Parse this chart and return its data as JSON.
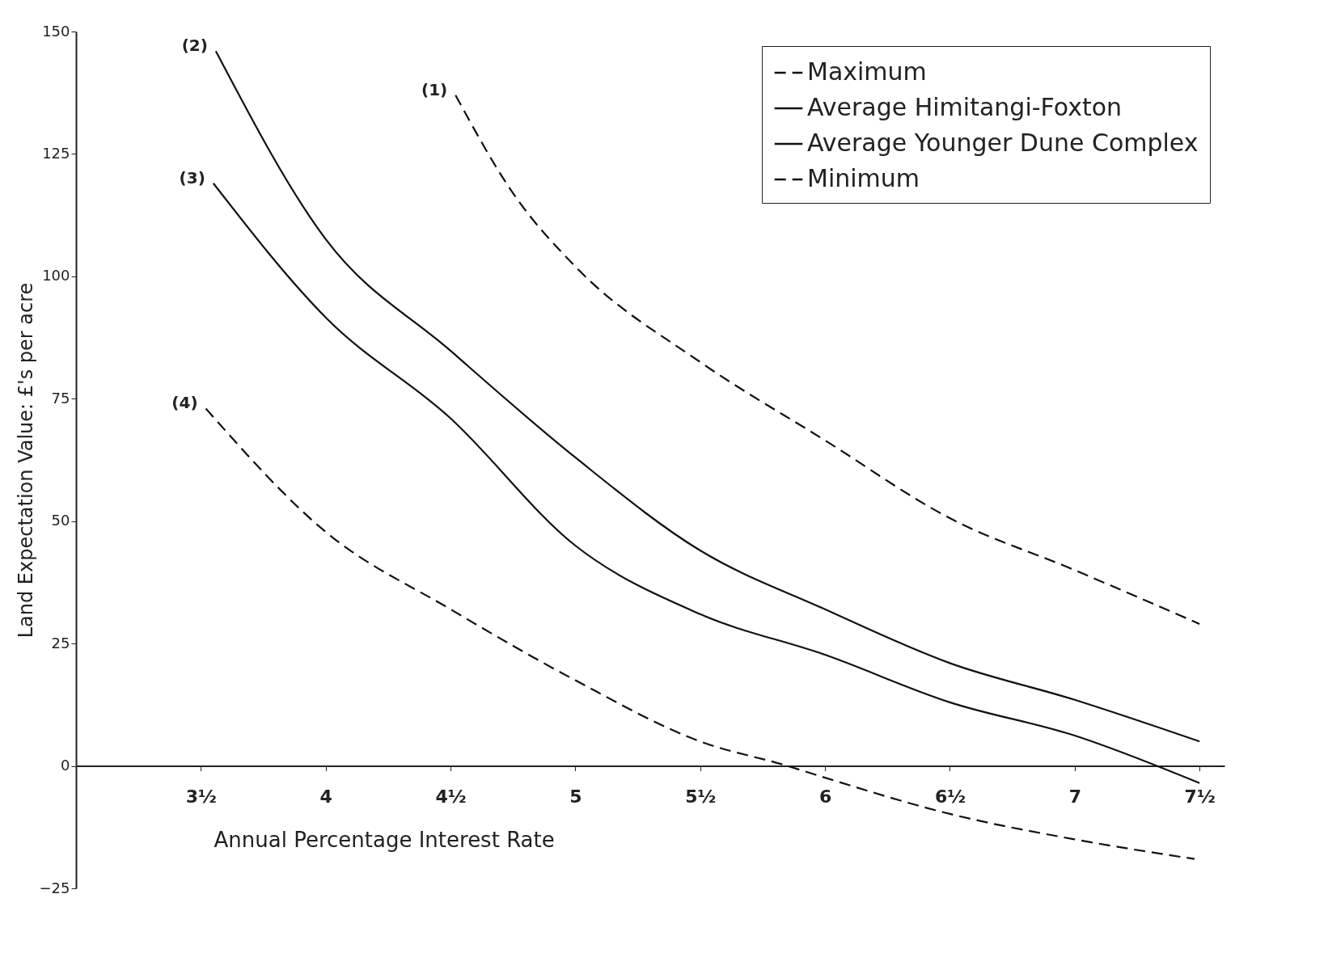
{
  "chart_data": {
    "type": "line",
    "xlabel": "Annual Percentage Interest Rate",
    "ylabel": "Land Expectation Value: £'s per acre",
    "xlim": [
      3,
      7.6
    ],
    "ylim": [
      -25,
      150
    ],
    "xticks": [
      {
        "value": 3.5,
        "label": "3½"
      },
      4,
      {
        "value": 4.5,
        "label": "4½"
      },
      5,
      {
        "value": 5.5,
        "label": "5½"
      },
      6,
      {
        "value": 6.5,
        "label": "6½"
      },
      7,
      {
        "value": 7.5,
        "label": "7½"
      }
    ],
    "yticks": [
      -25,
      0,
      25,
      50,
      75,
      100,
      125,
      150
    ],
    "grid": false,
    "legend": "top right",
    "marker": "none",
    "series": [
      {
        "name": "Maximum",
        "color": "#111111",
        "line_style": "dashed",
        "x": [
          4.52,
          4.75,
          5,
          5.5,
          6,
          6.5,
          7,
          7.5
        ],
        "values": [
          137,
          117,
          102,
          82.5,
          66.5,
          50.6,
          40,
          29
        ]
      },
      {
        "name": "Average Himitangi-Foxton",
        "color": "#111111",
        "line_style": "solid",
        "x": [
          3.56,
          4,
          4.5,
          5,
          5.5,
          6,
          6.5,
          7,
          7.5
        ],
        "values": [
          146,
          107.6,
          84.8,
          63,
          44,
          32,
          21,
          13.5,
          5
        ]
      },
      {
        "name": "Average Younger Dune Complex",
        "color": "#111111",
        "line_style": "solid",
        "x": [
          3.55,
          4,
          4.5,
          5,
          5.5,
          6,
          6.5,
          7,
          7.5
        ],
        "values": [
          119,
          91.6,
          71,
          45,
          31,
          22.7,
          13,
          6.2,
          -3.5
        ]
      },
      {
        "name": "Minimum",
        "color": "#111111",
        "line_style": "dashed",
        "x": [
          3.52,
          4,
          4.5,
          5,
          5.5,
          5.85,
          6,
          6.5,
          7,
          7.48
        ],
        "values": [
          73,
          47.8,
          32,
          17.5,
          5,
          0,
          -2.4,
          -9.8,
          -15,
          -19
        ]
      }
    ],
    "annotations": [
      {
        "text": "(1)",
        "x": 4.52,
        "y": 137
      },
      {
        "text": "(2)",
        "x": 3.56,
        "y": 146
      },
      {
        "text": "(3)",
        "x": 3.55,
        "y": 119
      },
      {
        "text": "(4)",
        "x": 3.52,
        "y": 73
      }
    ]
  }
}
